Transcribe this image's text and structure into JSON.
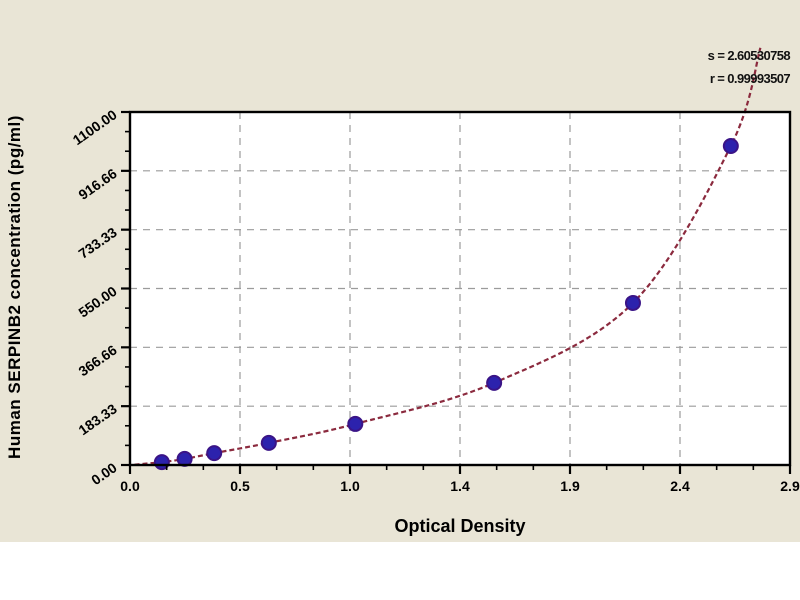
{
  "page": {
    "background_color": "#e9e5d6",
    "footer_strip_color": "#ffffff"
  },
  "chart_data": {
    "type": "scatter",
    "title": "",
    "xlabel": "Optical Density",
    "ylabel": "Human SERPINB2 concentration (pg/ml)",
    "annotations": {
      "s": "s = 2.60530758",
      "r": "r = 0.99993507"
    },
    "xlim": [
      0,
      2.9
    ],
    "ylim": [
      0,
      1100
    ],
    "grid": true,
    "x_ticks": [
      "0.0",
      "0.5",
      "1.0",
      "1.4",
      "1.9",
      "2.4",
      "2.9"
    ],
    "y_ticks": [
      "0.00",
      "183.33",
      "366.66",
      "550.00",
      "733.33",
      "916.66",
      "1100.00"
    ],
    "minor_ticks_per_interval": 2,
    "points": {
      "name": "standard-points",
      "od": [
        0.14,
        0.24,
        0.37,
        0.61,
        0.99,
        1.6,
        2.21,
        2.64
      ],
      "concentration": [
        9,
        19,
        37,
        69,
        128,
        256,
        505,
        994
      ]
    },
    "fit_curve": {
      "name": "regression-curve",
      "od": [
        0.02,
        0.14,
        0.24,
        0.37,
        0.61,
        0.99,
        1.6,
        2.21,
        2.64,
        2.77
      ],
      "concentration": [
        1,
        9,
        19,
        37,
        69,
        128,
        256,
        505,
        994,
        1300
      ]
    },
    "colors": {
      "curve": "#8b2a3e",
      "point_fill": "#2c22ad",
      "point_stroke": "#3a1487",
      "grid": "#9b9b9b",
      "frame": "#000000",
      "text": "#000000",
      "plot_background": "#ffffff"
    }
  }
}
